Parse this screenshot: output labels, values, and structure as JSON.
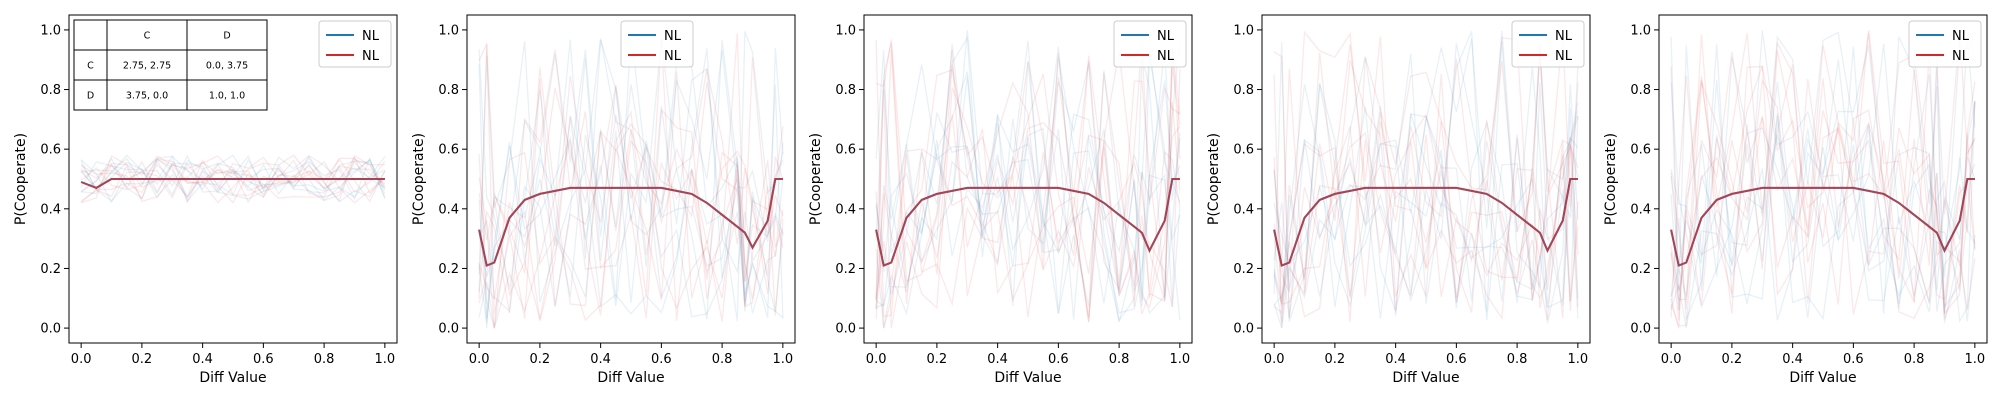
{
  "chart_data": [
    {
      "type": "line",
      "xlabel": "Diff Value",
      "ylabel": "P(Cooperate)",
      "xlim": [
        -0.04,
        1.04
      ],
      "ylim": [
        -0.05,
        1.05
      ],
      "xticks": [
        "0.0",
        "0.2",
        "0.4",
        "0.6",
        "0.8",
        "1.0"
      ],
      "yticks": [
        "0.0",
        "0.2",
        "0.4",
        "0.6",
        "0.8",
        "1.0"
      ],
      "legend": {
        "placement": "top-right",
        "entries": [
          "NL",
          "NL"
        ]
      },
      "payoff_table": {
        "col_headers": [
          "C",
          "D"
        ],
        "rows": [
          {
            "label": "C",
            "cells": [
              "2.75, 2.75",
              "0.0, 3.75"
            ]
          },
          {
            "label": "D",
            "cells": [
              "3.75, 0.0",
              "1.0, 1.0"
            ]
          }
        ]
      },
      "x": [
        0.0,
        0.05,
        0.1,
        0.15,
        0.2,
        0.25,
        0.3,
        0.35,
        0.4,
        0.45,
        0.5,
        0.55,
        0.6,
        0.65,
        0.7,
        0.75,
        0.8,
        0.85,
        0.9,
        0.95,
        1.0
      ],
      "series": [
        {
          "name": "NL",
          "color": "#1f77b4",
          "values": [
            0.49,
            0.47,
            0.5,
            0.5,
            0.5,
            0.5,
            0.5,
            0.5,
            0.5,
            0.5,
            0.5,
            0.5,
            0.5,
            0.5,
            0.5,
            0.5,
            0.5,
            0.5,
            0.5,
            0.5,
            0.5
          ]
        },
        {
          "name": "NL",
          "color": "#d62728",
          "values": [
            0.49,
            0.47,
            0.5,
            0.5,
            0.5,
            0.5,
            0.5,
            0.5,
            0.5,
            0.5,
            0.5,
            0.5,
            0.5,
            0.5,
            0.5,
            0.5,
            0.5,
            0.5,
            0.5,
            0.5,
            0.5
          ]
        }
      ]
    },
    {
      "type": "line",
      "xlabel": "Diff Value",
      "ylabel": "P(Cooperate)",
      "xlim": [
        -0.04,
        1.04
      ],
      "ylim": [
        -0.05,
        1.05
      ],
      "xticks": [
        "0.0",
        "0.2",
        "0.4",
        "0.6",
        "0.8",
        "1.0"
      ],
      "yticks": [
        "0.0",
        "0.2",
        "0.4",
        "0.6",
        "0.8",
        "1.0"
      ],
      "legend": {
        "placement": "top-center",
        "entries": [
          "NL",
          "NL"
        ]
      },
      "x": [
        0.0,
        0.025,
        0.05,
        0.1,
        0.15,
        0.2,
        0.25,
        0.3,
        0.35,
        0.4,
        0.45,
        0.5,
        0.55,
        0.6,
        0.65,
        0.7,
        0.75,
        0.8,
        0.85,
        0.875,
        0.9,
        0.95,
        0.975,
        1.0
      ],
      "series": [
        {
          "name": "NL",
          "color": "#1f77b4",
          "values": [
            0.33,
            0.21,
            0.22,
            0.37,
            0.43,
            0.45,
            0.46,
            0.47,
            0.47,
            0.47,
            0.47,
            0.47,
            0.47,
            0.47,
            0.46,
            0.45,
            0.42,
            0.38,
            0.34,
            0.32,
            0.27,
            0.36,
            0.5,
            0.5
          ]
        },
        {
          "name": "NL",
          "color": "#d62728",
          "values": [
            0.33,
            0.21,
            0.22,
            0.37,
            0.43,
            0.45,
            0.46,
            0.47,
            0.47,
            0.47,
            0.47,
            0.47,
            0.47,
            0.47,
            0.46,
            0.45,
            0.42,
            0.38,
            0.34,
            0.32,
            0.27,
            0.36,
            0.5,
            0.5
          ]
        }
      ]
    },
    {
      "type": "line",
      "xlabel": "Diff Value",
      "ylabel": "P(Cooperate)",
      "xlim": [
        -0.04,
        1.04
      ],
      "ylim": [
        -0.05,
        1.05
      ],
      "xticks": [
        "0.0",
        "0.2",
        "0.4",
        "0.6",
        "0.8",
        "1.0"
      ],
      "yticks": [
        "0.0",
        "0.2",
        "0.4",
        "0.6",
        "0.8",
        "1.0"
      ],
      "legend": {
        "placement": "top-right",
        "entries": [
          "NL",
          "NL"
        ]
      },
      "x": [
        0.0,
        0.025,
        0.05,
        0.1,
        0.15,
        0.2,
        0.25,
        0.3,
        0.35,
        0.4,
        0.45,
        0.5,
        0.55,
        0.6,
        0.65,
        0.7,
        0.75,
        0.8,
        0.85,
        0.875,
        0.9,
        0.95,
        0.975,
        1.0
      ],
      "series": [
        {
          "name": "NL",
          "color": "#1f77b4",
          "values": [
            0.33,
            0.21,
            0.22,
            0.37,
            0.43,
            0.45,
            0.46,
            0.47,
            0.47,
            0.47,
            0.47,
            0.47,
            0.47,
            0.47,
            0.46,
            0.45,
            0.42,
            0.38,
            0.34,
            0.32,
            0.26,
            0.36,
            0.5,
            0.5
          ]
        },
        {
          "name": "NL",
          "color": "#d62728",
          "values": [
            0.33,
            0.21,
            0.22,
            0.37,
            0.43,
            0.45,
            0.46,
            0.47,
            0.47,
            0.47,
            0.47,
            0.47,
            0.47,
            0.47,
            0.46,
            0.45,
            0.42,
            0.38,
            0.34,
            0.32,
            0.26,
            0.36,
            0.5,
            0.5
          ]
        }
      ]
    },
    {
      "type": "line",
      "xlabel": "Diff Value",
      "ylabel": "P(Cooperate)",
      "xlim": [
        -0.04,
        1.04
      ],
      "ylim": [
        -0.05,
        1.05
      ],
      "xticks": [
        "0.0",
        "0.2",
        "0.4",
        "0.6",
        "0.8",
        "1.0"
      ],
      "yticks": [
        "0.0",
        "0.2",
        "0.4",
        "0.6",
        "0.8",
        "1.0"
      ],
      "legend": {
        "placement": "top-right",
        "entries": [
          "NL",
          "NL"
        ]
      },
      "x": [
        0.0,
        0.025,
        0.05,
        0.1,
        0.15,
        0.2,
        0.25,
        0.3,
        0.35,
        0.4,
        0.45,
        0.5,
        0.55,
        0.6,
        0.65,
        0.7,
        0.75,
        0.8,
        0.85,
        0.875,
        0.9,
        0.95,
        0.975,
        1.0
      ],
      "series": [
        {
          "name": "NL",
          "color": "#1f77b4",
          "values": [
            0.33,
            0.21,
            0.22,
            0.37,
            0.43,
            0.45,
            0.46,
            0.47,
            0.47,
            0.47,
            0.47,
            0.47,
            0.47,
            0.47,
            0.46,
            0.45,
            0.42,
            0.38,
            0.34,
            0.32,
            0.26,
            0.36,
            0.5,
            0.5
          ]
        },
        {
          "name": "NL",
          "color": "#d62728",
          "values": [
            0.33,
            0.21,
            0.22,
            0.37,
            0.43,
            0.45,
            0.46,
            0.47,
            0.47,
            0.47,
            0.47,
            0.47,
            0.47,
            0.47,
            0.46,
            0.45,
            0.42,
            0.38,
            0.34,
            0.32,
            0.26,
            0.36,
            0.5,
            0.5
          ]
        }
      ]
    },
    {
      "type": "line",
      "xlabel": "Diff Value",
      "ylabel": "P(Cooperate)",
      "xlim": [
        -0.04,
        1.04
      ],
      "ylim": [
        -0.05,
        1.05
      ],
      "xticks": [
        "0.0",
        "0.2",
        "0.4",
        "0.6",
        "0.8",
        "1.0"
      ],
      "yticks": [
        "0.0",
        "0.2",
        "0.4",
        "0.6",
        "0.8",
        "1.0"
      ],
      "legend": {
        "placement": "top-right",
        "entries": [
          "NL",
          "NL"
        ]
      },
      "x": [
        0.0,
        0.025,
        0.05,
        0.1,
        0.15,
        0.2,
        0.25,
        0.3,
        0.35,
        0.4,
        0.45,
        0.5,
        0.55,
        0.6,
        0.65,
        0.7,
        0.75,
        0.8,
        0.85,
        0.875,
        0.9,
        0.95,
        0.975,
        1.0
      ],
      "series": [
        {
          "name": "NL",
          "color": "#1f77b4",
          "values": [
            0.33,
            0.21,
            0.22,
            0.37,
            0.43,
            0.45,
            0.46,
            0.47,
            0.47,
            0.47,
            0.47,
            0.47,
            0.47,
            0.47,
            0.46,
            0.45,
            0.42,
            0.38,
            0.34,
            0.32,
            0.26,
            0.36,
            0.5,
            0.5
          ]
        },
        {
          "name": "NL",
          "color": "#d62728",
          "values": [
            0.33,
            0.21,
            0.22,
            0.37,
            0.43,
            0.45,
            0.46,
            0.47,
            0.47,
            0.47,
            0.47,
            0.47,
            0.47,
            0.47,
            0.46,
            0.45,
            0.42,
            0.38,
            0.34,
            0.32,
            0.26,
            0.36,
            0.5,
            0.5
          ]
        }
      ]
    }
  ]
}
